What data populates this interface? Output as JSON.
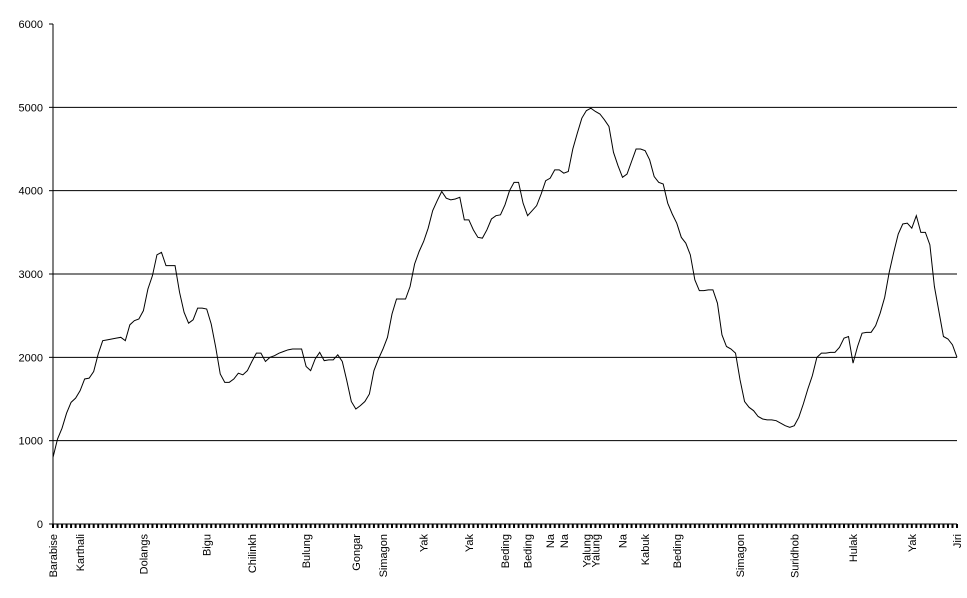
{
  "chart_data": {
    "type": "line",
    "categories": [
      "Barabise",
      null,
      null,
      null,
      null,
      null,
      "Karthali",
      null,
      null,
      null,
      null,
      null,
      null,
      null,
      null,
      null,
      null,
      null,
      null,
      null,
      "Dolangs",
      null,
      null,
      null,
      null,
      null,
      null,
      null,
      null,
      null,
      null,
      null,
      null,
      null,
      "Bigu",
      null,
      null,
      null,
      null,
      null,
      null,
      null,
      null,
      null,
      "Chilinkh",
      null,
      null,
      null,
      null,
      null,
      null,
      null,
      null,
      null,
      null,
      null,
      "Bulung",
      null,
      null,
      null,
      null,
      null,
      null,
      null,
      null,
      null,
      null,
      "Gongar",
      null,
      null,
      null,
      null,
      null,
      "Simagon",
      null,
      null,
      null,
      null,
      null,
      null,
      null,
      null,
      "Yak",
      null,
      null,
      null,
      null,
      null,
      null,
      null,
      null,
      null,
      "Yak",
      null,
      null,
      null,
      null,
      null,
      null,
      null,
      "Beding",
      null,
      null,
      null,
      null,
      "Beding",
      null,
      null,
      null,
      null,
      "Na",
      null,
      null,
      "Na",
      null,
      null,
      null,
      null,
      "Yalung",
      null,
      "Yalung",
      null,
      null,
      null,
      null,
      null,
      "Na",
      null,
      null,
      null,
      null,
      "Kabuk",
      null,
      null,
      null,
      null,
      null,
      null,
      "Beding",
      null,
      null,
      null,
      null,
      null,
      null,
      null,
      null,
      null,
      null,
      null,
      null,
      null,
      "Simagon",
      null,
      null,
      null,
      null,
      null,
      null,
      null,
      null,
      null,
      null,
      null,
      "Suridhob",
      null,
      null,
      null,
      null,
      null,
      null,
      null,
      null,
      null,
      null,
      null,
      null,
      "Hulak",
      null,
      null,
      null,
      null,
      null,
      null,
      null,
      null,
      null,
      null,
      null,
      null,
      "Yak",
      null,
      null,
      null,
      null,
      null,
      null,
      null,
      null,
      null,
      "Jiri"
    ],
    "values": [
      800,
      1020,
      1150,
      1330,
      1460,
      1510,
      1600,
      1740,
      1750,
      1830,
      2040,
      2200,
      2210,
      2220,
      2230,
      2240,
      2200,
      2390,
      2440,
      2460,
      2560,
      2820,
      2980,
      3230,
      3260,
      3100,
      3100,
      3100,
      2780,
      2540,
      2410,
      2450,
      2590,
      2590,
      2580,
      2400,
      2120,
      1800,
      1700,
      1700,
      1740,
      1810,
      1790,
      1840,
      1950,
      2050,
      2050,
      1950,
      2000,
      2020,
      2050,
      2070,
      2090,
      2100,
      2100,
      2100,
      1890,
      1840,
      1980,
      2060,
      1960,
      1970,
      1970,
      2030,
      1950,
      1720,
      1470,
      1380,
      1420,
      1470,
      1560,
      1840,
      1980,
      2100,
      2240,
      2520,
      2700,
      2700,
      2700,
      2850,
      3120,
      3270,
      3390,
      3550,
      3760,
      3880,
      3990,
      3910,
      3890,
      3900,
      3920,
      3650,
      3650,
      3530,
      3440,
      3430,
      3530,
      3660,
      3700,
      3710,
      3830,
      4000,
      4100,
      4100,
      3850,
      3700,
      3760,
      3820,
      3960,
      4120,
      4150,
      4250,
      4250,
      4210,
      4230,
      4500,
      4690,
      4870,
      4960,
      4990,
      4950,
      4920,
      4850,
      4770,
      4460,
      4300,
      4160,
      4200,
      4350,
      4500,
      4500,
      4480,
      4370,
      4170,
      4100,
      4080,
      3850,
      3720,
      3610,
      3440,
      3370,
      3230,
      2930,
      2800,
      2800,
      2810,
      2810,
      2650,
      2270,
      2130,
      2100,
      2050,
      1730,
      1470,
      1400,
      1360,
      1290,
      1260,
      1250,
      1250,
      1240,
      1210,
      1180,
      1160,
      1180,
      1280,
      1440,
      1620,
      1780,
      2000,
      2050,
      2050,
      2060,
      2060,
      2120,
      2230,
      2250,
      1930,
      2130,
      2290,
      2300,
      2300,
      2380,
      2530,
      2720,
      3020,
      3260,
      3480,
      3600,
      3610,
      3550,
      3700,
      3500,
      3500,
      3350,
      2850,
      2550,
      2250,
      2220,
      2150,
      2000
    ],
    "color": "#000000",
    "ylim": [
      0,
      6000
    ],
    "yticks": [
      0,
      1000,
      2000,
      3000,
      4000,
      5000,
      6000
    ],
    "grid": true
  }
}
